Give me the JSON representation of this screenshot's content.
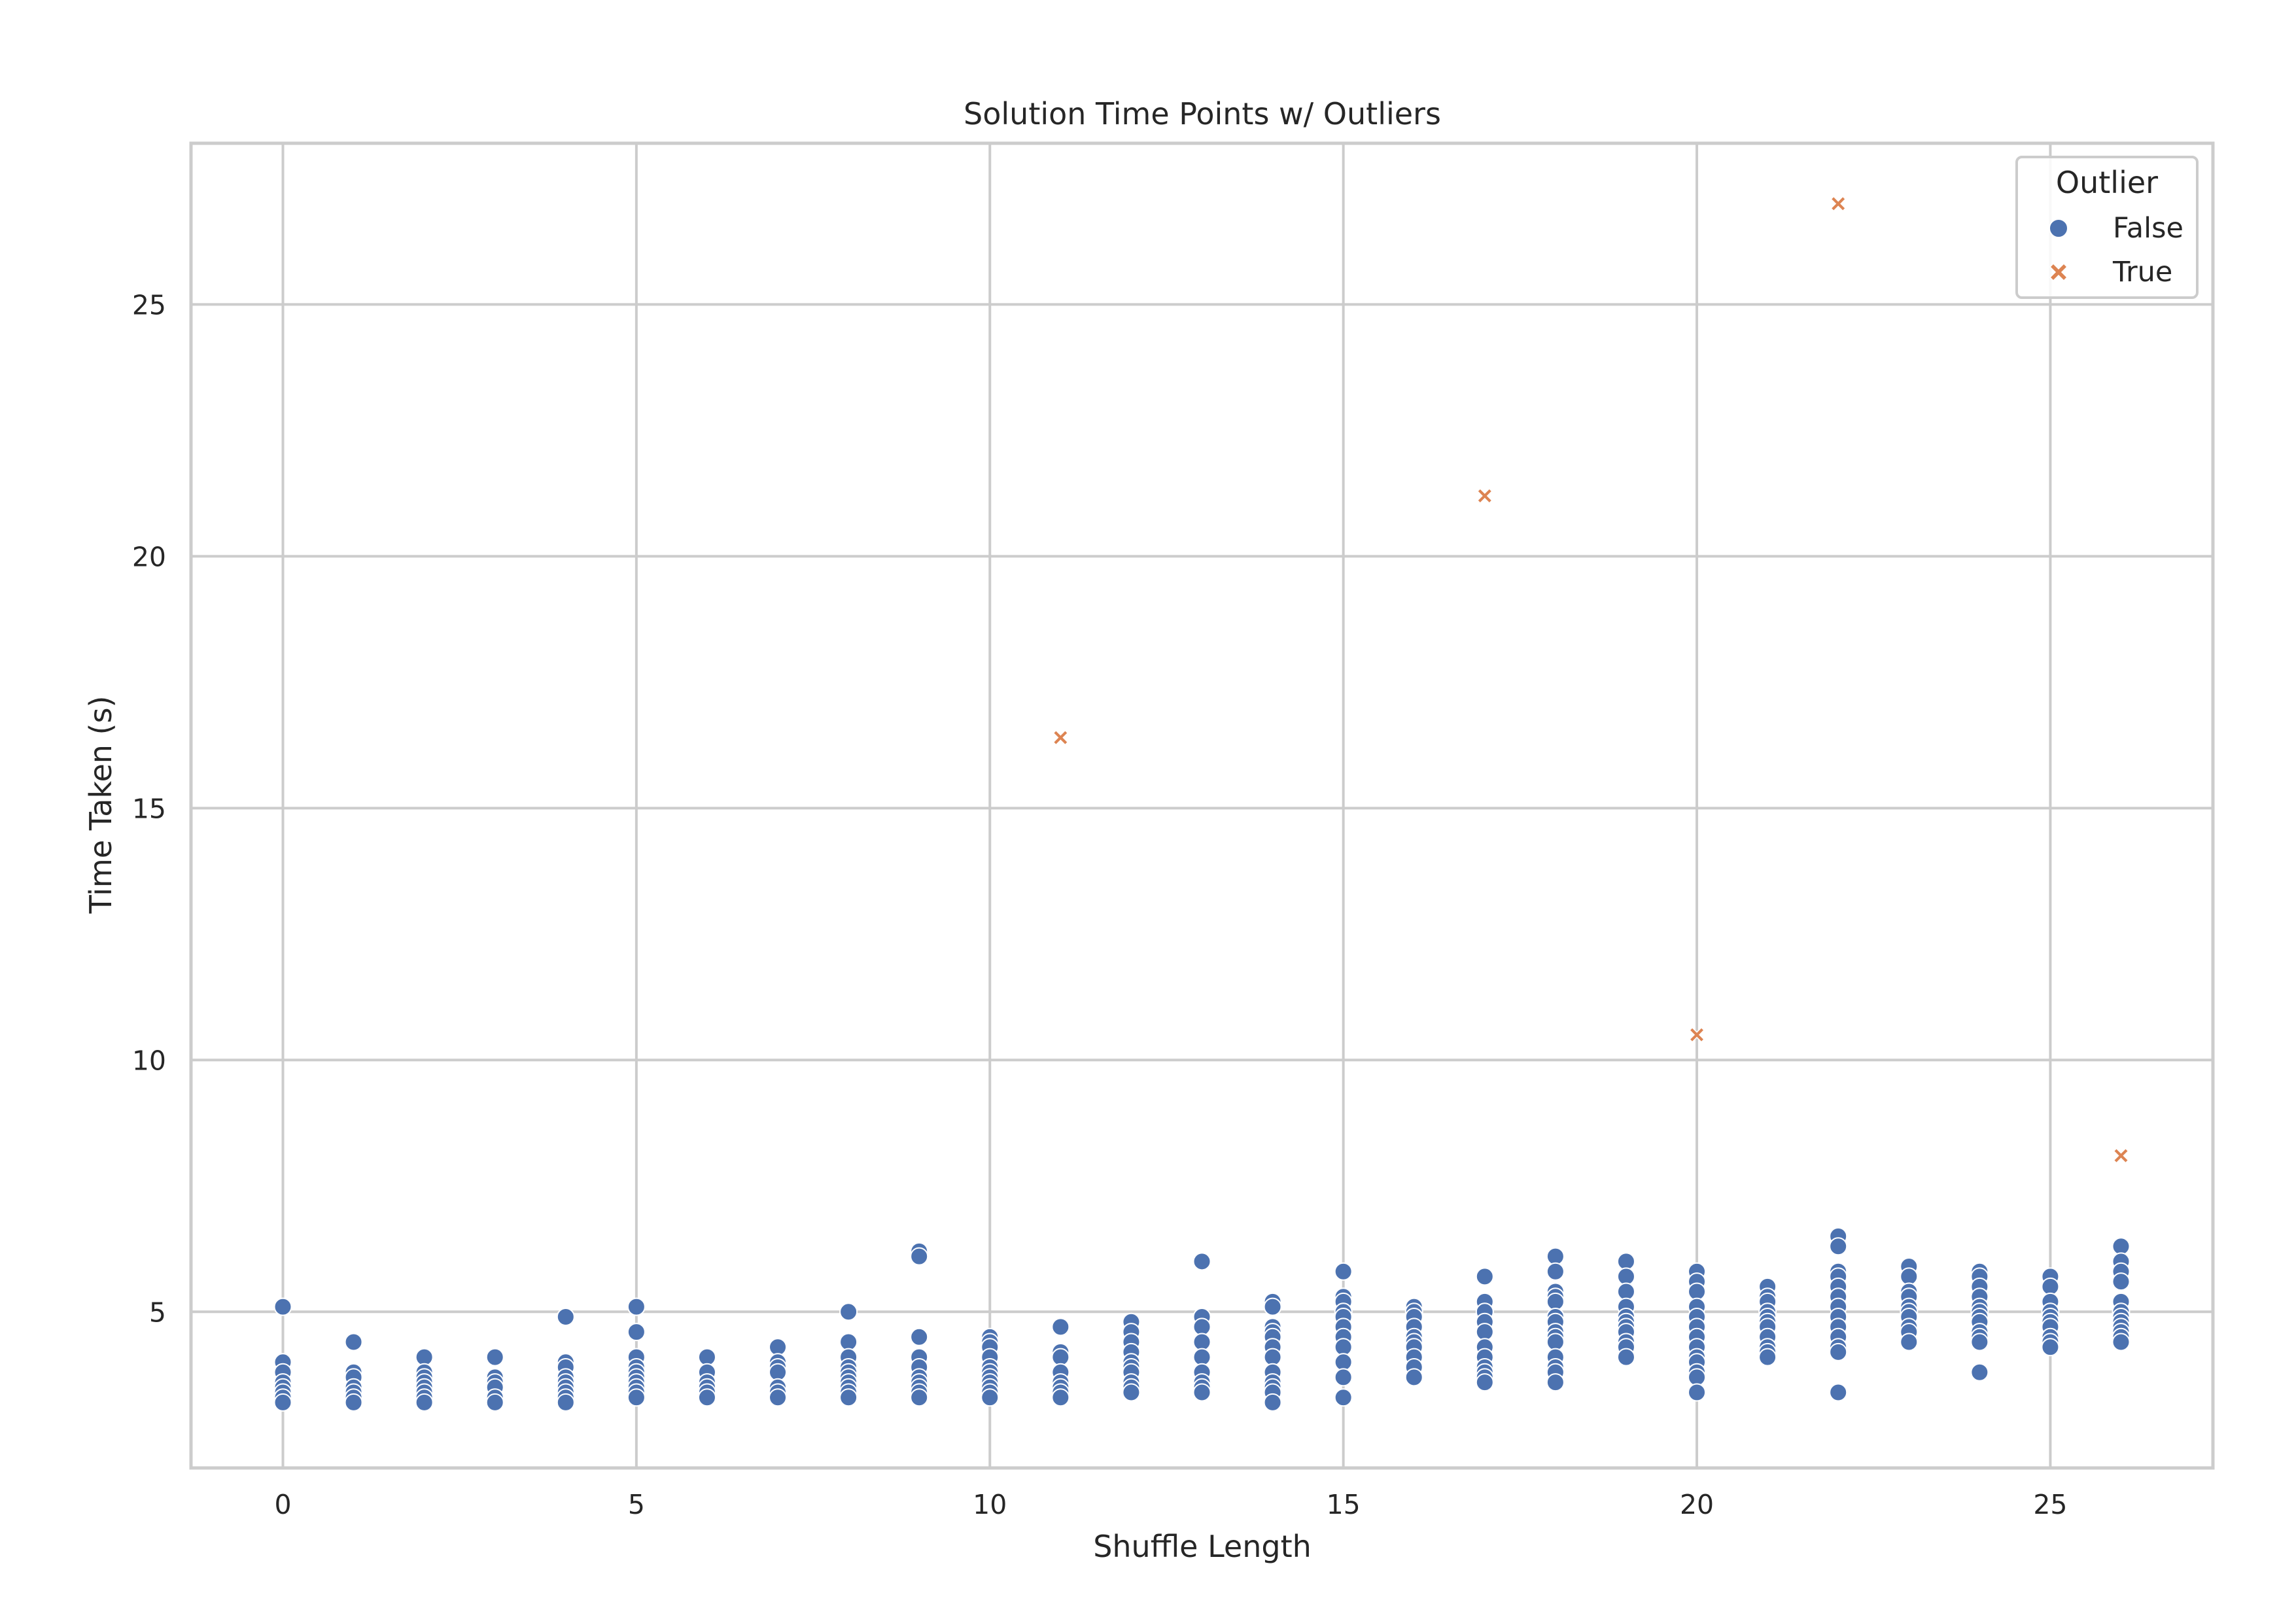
{
  "chart_data": {
    "type": "scatter",
    "title": "Solution Time Points w/ Outliers",
    "xlabel": "Shuffle Length",
    "ylabel": "Time Taken (s)",
    "xlim": [
      -1.3,
      27.3
    ],
    "ylim": [
      1.9,
      28.2
    ],
    "xticks": [
      0,
      5,
      10,
      15,
      20,
      25
    ],
    "yticks": [
      5,
      10,
      15,
      20,
      25
    ],
    "grid": true,
    "legend": {
      "title": "Outlier",
      "placement": "top-right"
    },
    "series": [
      {
        "name": "False",
        "marker": "circle",
        "color": "#4c72b0",
        "points": [
          [
            0,
            5.1
          ],
          [
            0,
            4.0
          ],
          [
            0,
            3.8
          ],
          [
            0,
            3.6
          ],
          [
            0,
            3.5
          ],
          [
            0,
            3.4
          ],
          [
            0,
            3.3
          ],
          [
            0,
            3.2
          ],
          [
            1,
            4.4
          ],
          [
            1,
            3.8
          ],
          [
            1,
            3.7
          ],
          [
            1,
            3.5
          ],
          [
            1,
            3.4
          ],
          [
            1,
            3.3
          ],
          [
            1,
            3.2
          ],
          [
            2,
            4.1
          ],
          [
            2,
            3.8
          ],
          [
            2,
            3.7
          ],
          [
            2,
            3.6
          ],
          [
            2,
            3.5
          ],
          [
            2,
            3.4
          ],
          [
            2,
            3.3
          ],
          [
            2,
            3.2
          ],
          [
            3,
            4.1
          ],
          [
            3,
            3.7
          ],
          [
            3,
            3.6
          ],
          [
            3,
            3.5
          ],
          [
            3,
            3.3
          ],
          [
            3,
            3.2
          ],
          [
            4,
            4.9
          ],
          [
            4,
            4.0
          ],
          [
            4,
            3.9
          ],
          [
            4,
            3.7
          ],
          [
            4,
            3.6
          ],
          [
            4,
            3.5
          ],
          [
            4,
            3.4
          ],
          [
            4,
            3.3
          ],
          [
            4,
            3.2
          ],
          [
            5,
            5.1
          ],
          [
            5,
            4.6
          ],
          [
            5,
            4.1
          ],
          [
            5,
            3.9
          ],
          [
            5,
            3.8
          ],
          [
            5,
            3.7
          ],
          [
            5,
            3.6
          ],
          [
            5,
            3.5
          ],
          [
            5,
            3.4
          ],
          [
            5,
            3.3
          ],
          [
            6,
            4.1
          ],
          [
            6,
            3.8
          ],
          [
            6,
            3.6
          ],
          [
            6,
            3.5
          ],
          [
            6,
            3.4
          ],
          [
            6,
            3.3
          ],
          [
            7,
            4.3
          ],
          [
            7,
            4.0
          ],
          [
            7,
            3.9
          ],
          [
            7,
            3.8
          ],
          [
            7,
            3.5
          ],
          [
            7,
            3.4
          ],
          [
            7,
            3.3
          ],
          [
            8,
            5.0
          ],
          [
            8,
            4.4
          ],
          [
            8,
            4.1
          ],
          [
            8,
            3.9
          ],
          [
            8,
            3.8
          ],
          [
            8,
            3.7
          ],
          [
            8,
            3.6
          ],
          [
            8,
            3.5
          ],
          [
            8,
            3.4
          ],
          [
            8,
            3.3
          ],
          [
            9,
            6.2
          ],
          [
            9,
            6.1
          ],
          [
            9,
            4.5
          ],
          [
            9,
            4.1
          ],
          [
            9,
            3.9
          ],
          [
            9,
            3.7
          ],
          [
            9,
            3.6
          ],
          [
            9,
            3.5
          ],
          [
            9,
            3.4
          ],
          [
            9,
            3.3
          ],
          [
            10,
            4.5
          ],
          [
            10,
            4.4
          ],
          [
            10,
            4.3
          ],
          [
            10,
            4.1
          ],
          [
            10,
            3.9
          ],
          [
            10,
            3.8
          ],
          [
            10,
            3.7
          ],
          [
            10,
            3.6
          ],
          [
            10,
            3.5
          ],
          [
            10,
            3.4
          ],
          [
            10,
            3.3
          ],
          [
            11,
            4.7
          ],
          [
            11,
            4.2
          ],
          [
            11,
            4.1
          ],
          [
            11,
            3.8
          ],
          [
            11,
            3.6
          ],
          [
            11,
            3.5
          ],
          [
            11,
            3.4
          ],
          [
            11,
            3.3
          ],
          [
            12,
            4.8
          ],
          [
            12,
            4.6
          ],
          [
            12,
            4.4
          ],
          [
            12,
            4.2
          ],
          [
            12,
            4.0
          ],
          [
            12,
            3.9
          ],
          [
            12,
            3.8
          ],
          [
            12,
            3.6
          ],
          [
            12,
            3.5
          ],
          [
            12,
            3.4
          ],
          [
            13,
            6.0
          ],
          [
            13,
            4.9
          ],
          [
            13,
            4.7
          ],
          [
            13,
            4.4
          ],
          [
            13,
            4.1
          ],
          [
            13,
            3.8
          ],
          [
            13,
            3.6
          ],
          [
            13,
            3.5
          ],
          [
            13,
            3.4
          ],
          [
            14,
            5.2
          ],
          [
            14,
            5.1
          ],
          [
            14,
            4.7
          ],
          [
            14,
            4.6
          ],
          [
            14,
            4.5
          ],
          [
            14,
            4.3
          ],
          [
            14,
            4.1
          ],
          [
            14,
            3.8
          ],
          [
            14,
            3.6
          ],
          [
            14,
            3.5
          ],
          [
            14,
            3.4
          ],
          [
            14,
            3.2
          ],
          [
            15,
            5.8
          ],
          [
            15,
            5.3
          ],
          [
            15,
            5.2
          ],
          [
            15,
            5.0
          ],
          [
            15,
            4.9
          ],
          [
            15,
            4.7
          ],
          [
            15,
            4.5
          ],
          [
            15,
            4.3
          ],
          [
            15,
            4.0
          ],
          [
            15,
            3.7
          ],
          [
            15,
            3.3
          ],
          [
            16,
            5.1
          ],
          [
            16,
            5.0
          ],
          [
            16,
            4.9
          ],
          [
            16,
            4.7
          ],
          [
            16,
            4.5
          ],
          [
            16,
            4.4
          ],
          [
            16,
            4.3
          ],
          [
            16,
            4.1
          ],
          [
            16,
            3.9
          ],
          [
            16,
            3.7
          ],
          [
            17,
            5.7
          ],
          [
            17,
            5.2
          ],
          [
            17,
            5.0
          ],
          [
            17,
            4.8
          ],
          [
            17,
            4.6
          ],
          [
            17,
            4.3
          ],
          [
            17,
            4.1
          ],
          [
            17,
            3.9
          ],
          [
            17,
            3.8
          ],
          [
            17,
            3.7
          ],
          [
            17,
            3.6
          ],
          [
            18,
            6.1
          ],
          [
            18,
            5.8
          ],
          [
            18,
            5.4
          ],
          [
            18,
            5.3
          ],
          [
            18,
            5.2
          ],
          [
            18,
            4.9
          ],
          [
            18,
            4.8
          ],
          [
            18,
            4.6
          ],
          [
            18,
            4.5
          ],
          [
            18,
            4.4
          ],
          [
            18,
            4.1
          ],
          [
            18,
            3.9
          ],
          [
            18,
            3.8
          ],
          [
            18,
            3.6
          ],
          [
            19,
            6.0
          ],
          [
            19,
            5.7
          ],
          [
            19,
            5.4
          ],
          [
            19,
            5.1
          ],
          [
            19,
            4.9
          ],
          [
            19,
            4.8
          ],
          [
            19,
            4.7
          ],
          [
            19,
            4.6
          ],
          [
            19,
            4.4
          ],
          [
            19,
            4.3
          ],
          [
            19,
            4.1
          ],
          [
            20,
            5.8
          ],
          [
            20,
            5.6
          ],
          [
            20,
            5.4
          ],
          [
            20,
            5.1
          ],
          [
            20,
            4.9
          ],
          [
            20,
            4.7
          ],
          [
            20,
            4.5
          ],
          [
            20,
            4.3
          ],
          [
            20,
            4.1
          ],
          [
            20,
            4.0
          ],
          [
            20,
            3.8
          ],
          [
            20,
            3.7
          ],
          [
            20,
            3.4
          ],
          [
            21,
            5.5
          ],
          [
            21,
            5.3
          ],
          [
            21,
            5.2
          ],
          [
            21,
            5.0
          ],
          [
            21,
            4.9
          ],
          [
            21,
            4.8
          ],
          [
            21,
            4.7
          ],
          [
            21,
            4.5
          ],
          [
            21,
            4.3
          ],
          [
            21,
            4.2
          ],
          [
            21,
            4.1
          ],
          [
            22,
            6.5
          ],
          [
            22,
            6.3
          ],
          [
            22,
            5.8
          ],
          [
            22,
            5.7
          ],
          [
            22,
            5.5
          ],
          [
            22,
            5.3
          ],
          [
            22,
            5.1
          ],
          [
            22,
            4.9
          ],
          [
            22,
            4.7
          ],
          [
            22,
            4.5
          ],
          [
            22,
            4.3
          ],
          [
            22,
            4.2
          ],
          [
            22,
            3.4
          ],
          [
            23,
            5.9
          ],
          [
            23,
            5.7
          ],
          [
            23,
            5.4
          ],
          [
            23,
            5.3
          ],
          [
            23,
            5.1
          ],
          [
            23,
            5.0
          ],
          [
            23,
            4.9
          ],
          [
            23,
            4.7
          ],
          [
            23,
            4.6
          ],
          [
            23,
            4.4
          ],
          [
            24,
            5.8
          ],
          [
            24,
            5.7
          ],
          [
            24,
            5.5
          ],
          [
            24,
            5.3
          ],
          [
            24,
            5.1
          ],
          [
            24,
            5.0
          ],
          [
            24,
            4.9
          ],
          [
            24,
            4.8
          ],
          [
            24,
            4.6
          ],
          [
            24,
            4.5
          ],
          [
            24,
            4.4
          ],
          [
            24,
            3.8
          ],
          [
            25,
            5.7
          ],
          [
            25,
            5.5
          ],
          [
            25,
            5.2
          ],
          [
            25,
            5.0
          ],
          [
            25,
            4.9
          ],
          [
            25,
            4.8
          ],
          [
            25,
            4.7
          ],
          [
            25,
            4.5
          ],
          [
            25,
            4.4
          ],
          [
            25,
            4.3
          ],
          [
            26,
            6.3
          ],
          [
            26,
            6.0
          ],
          [
            26,
            5.8
          ],
          [
            26,
            5.6
          ],
          [
            26,
            5.2
          ],
          [
            26,
            5.0
          ],
          [
            26,
            4.9
          ],
          [
            26,
            4.8
          ],
          [
            26,
            4.7
          ],
          [
            26,
            4.6
          ],
          [
            26,
            4.5
          ],
          [
            26,
            4.4
          ]
        ]
      },
      {
        "name": "True",
        "marker": "x",
        "color": "#dd8452",
        "points": [
          [
            11,
            16.4
          ],
          [
            17,
            21.2
          ],
          [
            20,
            10.5
          ],
          [
            22,
            27.0
          ],
          [
            26,
            8.1
          ]
        ]
      }
    ]
  },
  "colors": {
    "grid": "#cccccc",
    "axis_frame": "#cccccc",
    "text": "#262626",
    "marker_edge": "#ffffff"
  }
}
